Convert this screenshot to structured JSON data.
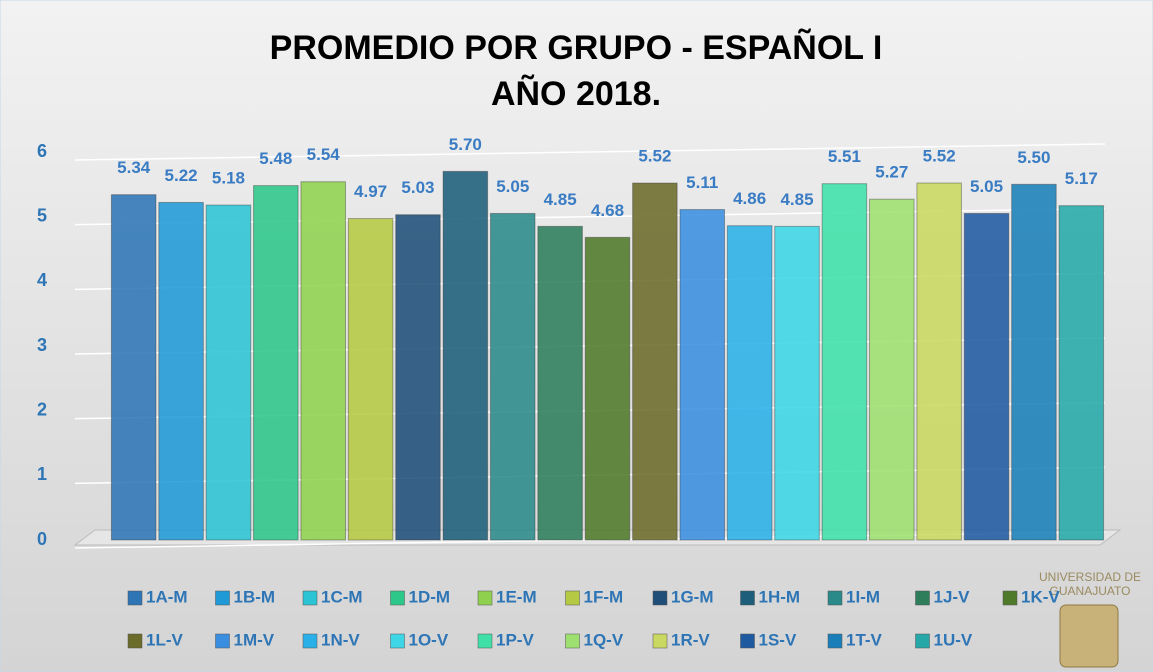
{
  "chart_data": {
    "type": "bar",
    "title": "PROMEDIO POR GRUPO - ESPAÑOL I",
    "subtitle": "AÑO 2018.",
    "logo_text": [
      "UNIVERSIDAD DE",
      "GUANAJUATO"
    ],
    "ylim": [
      0,
      6
    ],
    "yticks": [
      0,
      1,
      2,
      3,
      4,
      5,
      6
    ],
    "grid": true,
    "series": [
      {
        "name": "1A-M",
        "color": "#2e75b6",
        "values": [
          5.34
        ],
        "value_labels": [
          "5.34"
        ]
      },
      {
        "name": "1B-M",
        "color": "#1f9ad6",
        "values": [
          5.22
        ],
        "value_labels": [
          "5.22"
        ]
      },
      {
        "name": "1C-M",
        "color": "#2bc4d4",
        "values": [
          5.18
        ],
        "value_labels": [
          "5.18"
        ]
      },
      {
        "name": "1D-M",
        "color": "#2ec78a",
        "values": [
          5.48
        ],
        "value_labels": [
          "5.48"
        ]
      },
      {
        "name": "1E-M",
        "color": "#8fd14f",
        "values": [
          5.54
        ],
        "value_labels": [
          "5.54"
        ]
      },
      {
        "name": "1F-M",
        "color": "#b5c942",
        "values": [
          4.97
        ],
        "value_labels": [
          "4.97"
        ]
      },
      {
        "name": "1G-M",
        "color": "#1f4e79",
        "values": [
          5.03
        ],
        "value_labels": [
          "5.03"
        ]
      },
      {
        "name": "1H-M",
        "color": "#1d5f7a",
        "values": [
          5.7
        ],
        "value_labels": [
          "5.70"
        ]
      },
      {
        "name": "1I-M",
        "color": "#2a8a8a",
        "values": [
          5.05
        ],
        "value_labels": [
          "5.05"
        ]
      },
      {
        "name": "1J-V",
        "color": "#2e7d5b",
        "values": [
          4.85
        ],
        "value_labels": [
          "4.85"
        ]
      },
      {
        "name": "1K-V",
        "color": "#4e7a2a",
        "values": [
          4.68
        ],
        "value_labels": [
          "4.68"
        ]
      },
      {
        "name": "1L-V",
        "color": "#6b6b2a",
        "values": [
          5.52
        ],
        "value_labels": [
          "5.52"
        ]
      },
      {
        "name": "1M-V",
        "color": "#3a8ee0",
        "values": [
          5.11
        ],
        "value_labels": [
          "5.11"
        ]
      },
      {
        "name": "1N-V",
        "color": "#2ab0e8",
        "values": [
          4.86
        ],
        "value_labels": [
          "4.86"
        ]
      },
      {
        "name": "1O-V",
        "color": "#3cd6e6",
        "values": [
          4.85
        ],
        "value_labels": [
          "4.85"
        ]
      },
      {
        "name": "1P-V",
        "color": "#3ee0a8",
        "values": [
          5.51
        ],
        "value_labels": [
          "5.51"
        ]
      },
      {
        "name": "1Q-V",
        "color": "#9ee070",
        "values": [
          5.27
        ],
        "value_labels": [
          "5.27"
        ]
      },
      {
        "name": "1R-V",
        "color": "#c8d860",
        "values": [
          5.52
        ],
        "value_labels": [
          "5.52"
        ]
      },
      {
        "name": "1S-V",
        "color": "#1f5aa0",
        "values": [
          5.05
        ],
        "value_labels": [
          "5.05"
        ]
      },
      {
        "name": "1T-V",
        "color": "#1a7fb8",
        "values": [
          5.5
        ],
        "value_labels": [
          "5.50"
        ]
      },
      {
        "name": "1U-V",
        "color": "#26a8a8",
        "values": [
          5.17
        ],
        "value_labels": [
          "5.17"
        ]
      }
    ]
  }
}
